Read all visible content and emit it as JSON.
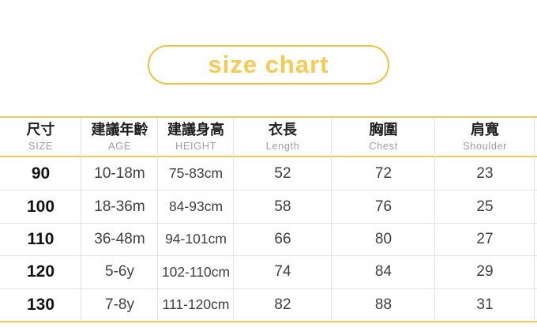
{
  "title": "size chart",
  "colors": {
    "pill_border": "#efc13c",
    "title_text": "#f8ca54",
    "table_line_yellow": "#efc85e",
    "grid_gray": "#e2e2e2",
    "header_zh_text": "#1f1f1f",
    "header_en_text": "#9e9e9e",
    "size_value_text": "#121212",
    "value_text": "#3f3f3f",
    "background": "#ffffff"
  },
  "chart_data": {
    "type": "table",
    "title": "size chart",
    "columns": [
      {
        "zh": "尺寸",
        "en": "SIZE"
      },
      {
        "zh": "建議年齡",
        "en": "AGE"
      },
      {
        "zh": "建議身高",
        "en": "HEIGHT"
      },
      {
        "zh": "衣長",
        "en": "Length"
      },
      {
        "zh": "胸圍",
        "en": "Chest"
      },
      {
        "zh": "肩寬",
        "en": "Shoulder"
      }
    ],
    "rows": [
      [
        "90",
        "10-18m",
        "75-83cm",
        "52",
        "72",
        "23"
      ],
      [
        "100",
        "18-36m",
        "84-93cm",
        "58",
        "76",
        "25"
      ],
      [
        "110",
        "36-48m",
        "94-101cm",
        "66",
        "80",
        "27"
      ],
      [
        "120",
        "5-6y",
        "102-110cm",
        "74",
        "84",
        "29"
      ],
      [
        "130",
        "7-8y",
        "111-120cm",
        "82",
        "88",
        "31"
      ]
    ]
  }
}
